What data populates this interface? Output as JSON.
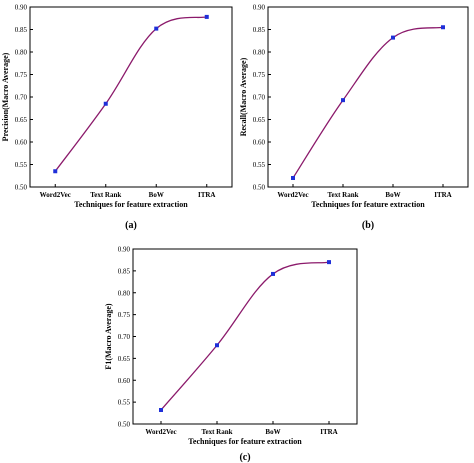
{
  "chart_data": [
    {
      "type": "line",
      "panel_label": "(a)",
      "categories": [
        "Word2Vec",
        "Text Rank",
        "BoW",
        "ITRA"
      ],
      "values": [
        0.535,
        0.685,
        0.852,
        0.878
      ],
      "xlabel": "Techniques for feature extraction",
      "ylabel": "Precision(Macro Average)",
      "ylim": [
        0.5,
        0.9
      ],
      "yticks": [
        "0.50",
        "0.55",
        "0.60",
        "0.65",
        "0.70",
        "0.75",
        "0.80",
        "0.85",
        "0.90"
      ],
      "grid": false,
      "colors": {
        "line": "#8b1a6b",
        "marker": "#1f2fd8"
      }
    },
    {
      "type": "line",
      "panel_label": "(b)",
      "categories": [
        "Word2Vec",
        "Text Rank",
        "BoW",
        "ITRA"
      ],
      "values": [
        0.52,
        0.693,
        0.832,
        0.855
      ],
      "xlabel": "Techniques for feature extraction",
      "ylabel": "Recall(Macro Average)",
      "ylim": [
        0.5,
        0.9
      ],
      "yticks": [
        "0.50",
        "0.55",
        "0.60",
        "0.65",
        "0.70",
        "0.75",
        "0.80",
        "0.85",
        "0.90"
      ],
      "grid": false,
      "colors": {
        "line": "#8b1a6b",
        "marker": "#1f2fd8"
      }
    },
    {
      "type": "line",
      "panel_label": "(c)",
      "categories": [
        "Word2Vec",
        "Text Rank",
        "BoW",
        "ITRA"
      ],
      "values": [
        0.532,
        0.68,
        0.843,
        0.87
      ],
      "xlabel": "Techniques for feature extraction",
      "ylabel": "F1(Macro Average)",
      "ylim": [
        0.5,
        0.9
      ],
      "yticks": [
        "0.50",
        "0.55",
        "0.60",
        "0.65",
        "0.70",
        "0.75",
        "0.80",
        "0.85",
        "0.90"
      ],
      "grid": false,
      "colors": {
        "line": "#8b1a6b",
        "marker": "#1f2fd8"
      }
    }
  ]
}
